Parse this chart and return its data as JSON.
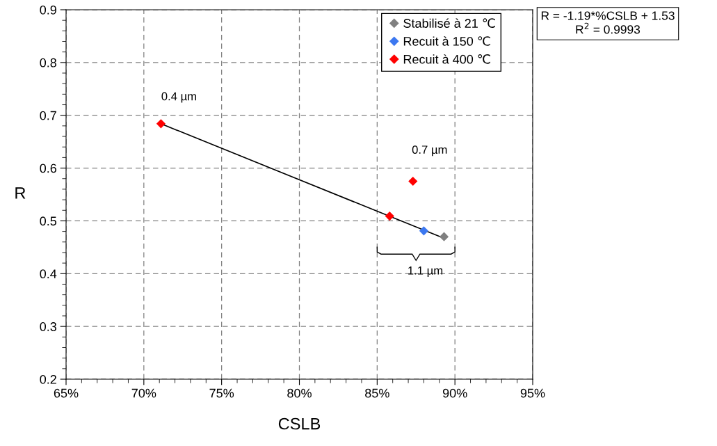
{
  "chart_data": {
    "type": "scatter",
    "xlabel": "CSLB",
    "ylabel": "R",
    "marker": "diamond",
    "grid": true,
    "legend": "top right",
    "xlim": [
      65,
      95
    ],
    "xticks": [
      {
        "value": 65,
        "label": "65%"
      },
      {
        "value": 70,
        "label": "70%"
      },
      {
        "value": 75,
        "label": "75%"
      },
      {
        "value": 80,
        "label": "80%"
      },
      {
        "value": 85,
        "label": "85%"
      },
      {
        "value": 90,
        "label": "90%"
      },
      {
        "value": 95,
        "label": "95%"
      }
    ],
    "ylim": [
      0.2,
      0.9
    ],
    "yticks": [
      0.2,
      0.3,
      0.4,
      0.5,
      0.6,
      0.7,
      0.8,
      0.9
    ],
    "series": [
      {
        "name": "Stabilisé à 21 ℃",
        "color": "#808080",
        "x": [
          89.3
        ],
        "values": [
          0.47
        ]
      },
      {
        "name": "Recuit à 150 ℃",
        "color": "#3c78f0",
        "x": [
          88.0
        ],
        "values": [
          0.481
        ]
      },
      {
        "name": "Recuit à 400 ℃",
        "color": "#ff0000",
        "x": [
          71.1,
          85.8,
          87.3
        ],
        "values": [
          0.684,
          0.509,
          0.575
        ]
      },
      {
        "type": "line",
        "marker": "none",
        "color": "#000000",
        "x": [
          71.1,
          89.3
        ],
        "values": [
          0.684,
          0.467
        ]
      }
    ],
    "annotations": [
      "0.4 µm",
      "0.7 µm",
      "1.1 µm",
      "R = -1.19*%CSLB + 1.53",
      "R$^{2}$ = 0.9993"
    ]
  }
}
